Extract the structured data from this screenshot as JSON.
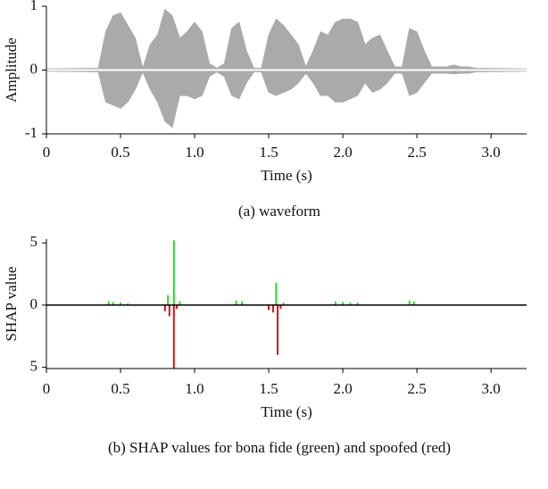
{
  "chart_data": [
    {
      "type": "area",
      "ylabel": "Amplitude",
      "xlabel": "Time (s)",
      "caption": "(a) waveform",
      "xlim": [
        0,
        3.24
      ],
      "ylim": [
        -1,
        1
      ],
      "xticks": [
        0,
        0.5,
        {
          "value": 1,
          "label": "1.0"
        },
        1.5,
        {
          "value": 2,
          "label": "2.0"
        },
        2.5,
        {
          "value": 3,
          "label": "3.0"
        }
      ],
      "yticks": [
        1,
        0,
        -1
      ],
      "x": [
        0,
        0.35,
        0.4,
        0.45,
        0.5,
        0.55,
        0.6,
        0.65,
        0.7,
        0.75,
        0.8,
        0.85,
        0.9,
        0.95,
        1.0,
        1.05,
        1.1,
        1.15,
        1.2,
        1.25,
        1.3,
        1.35,
        1.4,
        1.45,
        1.5,
        1.55,
        1.6,
        1.65,
        1.7,
        1.75,
        1.8,
        1.85,
        1.9,
        1.95,
        2.0,
        2.05,
        2.1,
        2.15,
        2.2,
        2.25,
        2.3,
        2.35,
        2.4,
        2.45,
        2.5,
        2.55,
        2.6,
        2.65,
        2.7,
        2.75,
        2.8,
        2.85,
        2.9,
        3.24
      ],
      "series": [
        {
          "color": "#aaaaaa",
          "values": [
            0.02,
            0.03,
            0.6,
            0.85,
            0.9,
            0.7,
            0.5,
            0.03,
            0.4,
            0.55,
            0.95,
            0.85,
            0.5,
            0.6,
            0.75,
            0.6,
            0.1,
            0.03,
            0.1,
            0.65,
            0.75,
            0.3,
            0.03,
            0.03,
            0.55,
            0.8,
            0.7,
            0.55,
            0.4,
            0.05,
            0.3,
            0.6,
            0.55,
            0.75,
            0.8,
            0.8,
            0.75,
            0.4,
            0.5,
            0.55,
            0.3,
            0.05,
            0.05,
            0.65,
            0.6,
            0.3,
            0.05,
            0.05,
            0.05,
            0.08,
            0.05,
            0.05,
            0.03,
            0.02
          ]
        },
        {
          "color": "#aaaaaa",
          "values": [
            -0.02,
            -0.03,
            -0.5,
            -0.55,
            -0.6,
            -0.5,
            -0.3,
            -0.03,
            -0.3,
            -0.5,
            -0.8,
            -0.9,
            -0.4,
            -0.4,
            -0.45,
            -0.4,
            -0.1,
            -0.03,
            -0.1,
            -0.4,
            -0.45,
            -0.2,
            -0.03,
            -0.03,
            -0.35,
            -0.4,
            -0.35,
            -0.3,
            -0.2,
            -0.05,
            -0.2,
            -0.4,
            -0.4,
            -0.5,
            -0.5,
            -0.45,
            -0.4,
            -0.2,
            -0.35,
            -0.3,
            -0.2,
            -0.05,
            -0.05,
            -0.4,
            -0.35,
            -0.2,
            -0.05,
            -0.05,
            -0.05,
            -0.06,
            -0.05,
            -0.05,
            -0.03,
            -0.02
          ]
        }
      ]
    },
    {
      "type": "stem",
      "ylabel": "SHAP value",
      "xlabel": "Time (s)",
      "caption": "(b) SHAP values for bona fide (green) and spoofed (red)",
      "xlim": [
        0,
        3.24
      ],
      "ylim": [
        -5.1,
        5.3
      ],
      "xticks": [
        0,
        0.5,
        {
          "value": 1,
          "label": "1.0"
        },
        1.5,
        {
          "value": 2,
          "label": "2.0"
        },
        2.5,
        {
          "value": 3,
          "label": "3.0"
        }
      ],
      "yticks": [
        5,
        0,
        {
          "value": -5,
          "label": "5"
        }
      ],
      "series": [
        {
          "color": "#22dd22",
          "x": [
            0.42,
            0.45,
            0.5,
            0.55,
            0.82,
            0.86,
            0.9,
            1.28,
            1.32,
            1.55,
            1.6,
            1.95,
            2.0,
            2.05,
            2.1,
            2.45,
            2.48
          ],
          "values": [
            0.3,
            0.25,
            0.2,
            0.15,
            0.8,
            5.2,
            0.3,
            0.35,
            0.3,
            1.8,
            0.2,
            0.3,
            0.25,
            0.2,
            0.2,
            0.35,
            0.3
          ]
        },
        {
          "color": "#dd1111",
          "x": [
            0.8,
            0.83,
            0.86,
            0.88,
            1.5,
            1.53,
            1.56,
            1.58
          ],
          "values": [
            -0.5,
            -0.9,
            -5.1,
            -0.3,
            -0.4,
            -0.6,
            -4,
            -0.3
          ]
        }
      ]
    }
  ]
}
